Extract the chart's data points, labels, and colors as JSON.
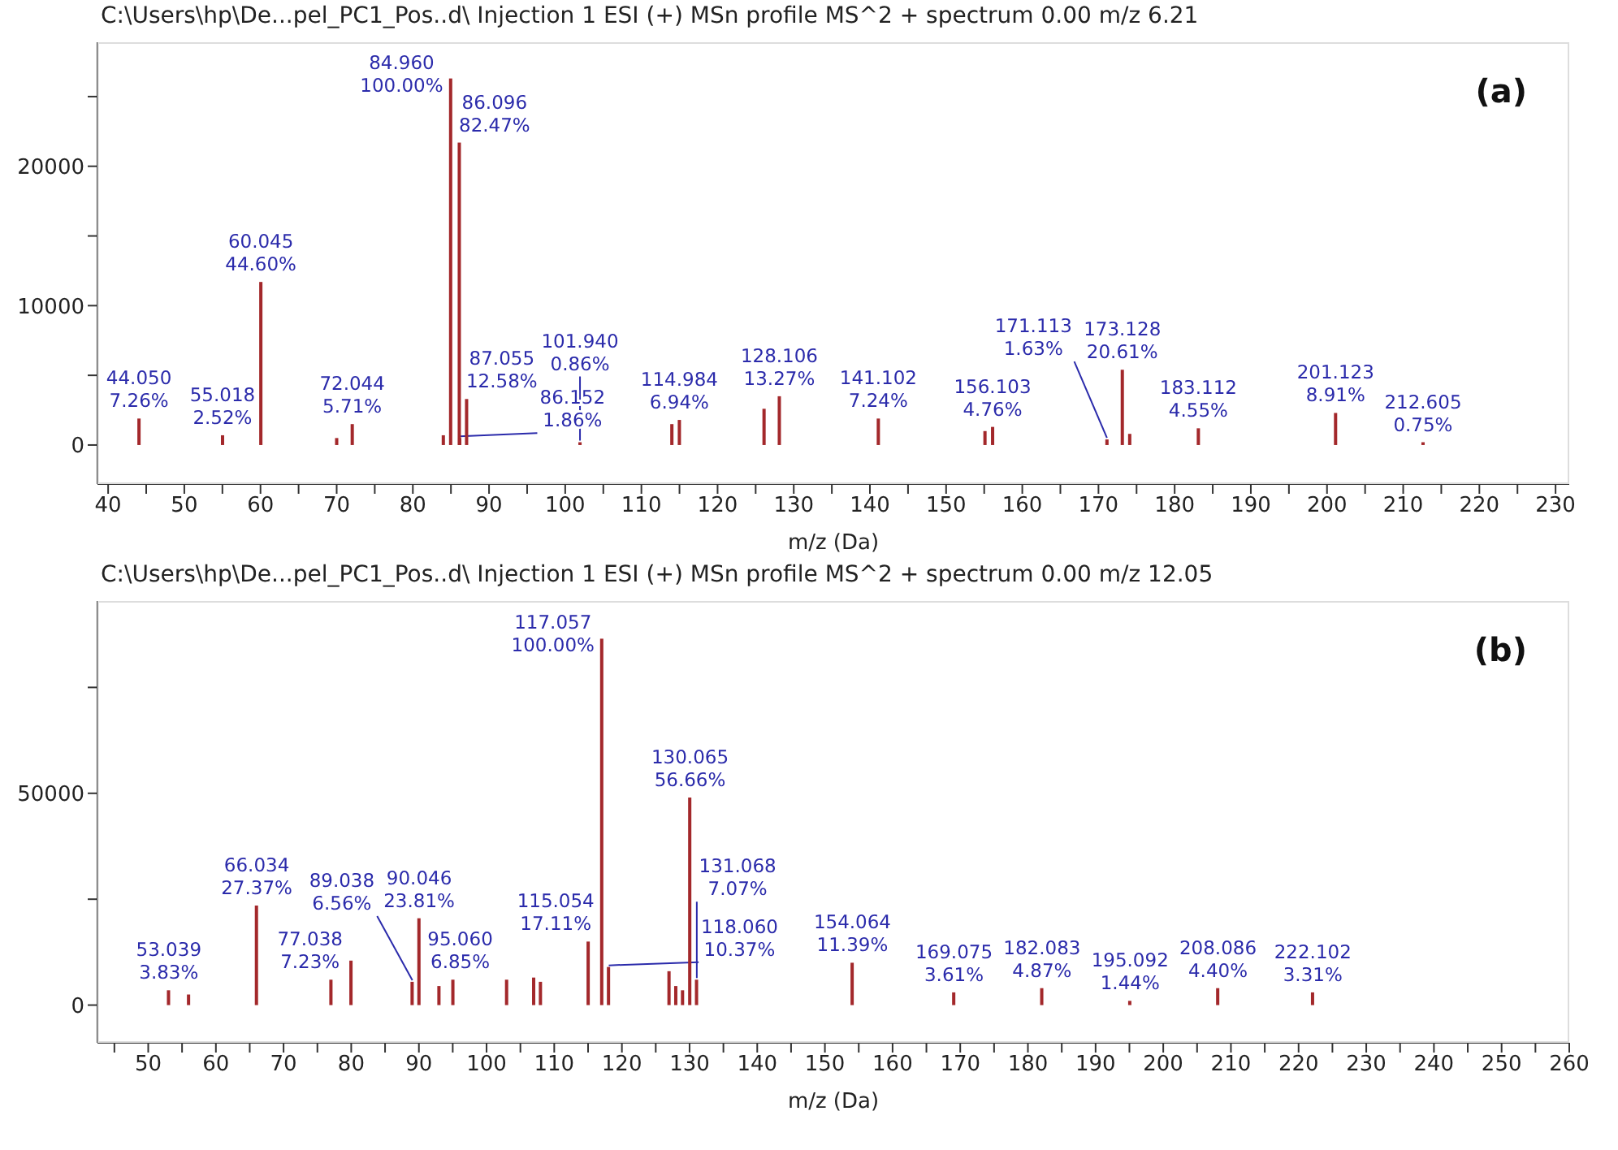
{
  "chart_data": [
    {
      "type": "bar",
      "title": "C:\\Users\\hp\\De...pel_PC1_Pos..d\\ Injection 1 ESI (+) MSn profile MS^2 + spectrum 0.00 m/z 6.21",
      "xlabel": "m/z (Da)",
      "color": "#a3282b",
      "annotations": [
        "(a)",
        {
          "text": "44.050\n7.26%",
          "x": 44.05,
          "y": 1900
        },
        {
          "text": "55.018\n2.52%",
          "x": 55.018,
          "y": 700
        },
        {
          "text": "60.045\n44.60%",
          "x": 60.045,
          "y": 11700
        },
        {
          "text": "72.044\n5.71%",
          "x": 72.044,
          "y": 1500
        },
        {
          "text": "84.960\n100.00%",
          "x": 84.96,
          "y": 26300
        },
        {
          "text": "86.096\n82.47%",
          "x": 86.096,
          "y": 21700
        },
        {
          "text": "86.152\n1.86%",
          "x": 86.152,
          "y": 500
        },
        {
          "text": "87.055\n12.58%",
          "x": 87.055,
          "y": 3300
        },
        {
          "text": "101.940\n0.86%",
          "x": 101.94,
          "y": 200
        },
        {
          "text": "114.984\n6.94%",
          "x": 114.984,
          "y": 1800
        },
        {
          "text": "128.106\n13.27%",
          "x": 128.106,
          "y": 3500
        },
        {
          "text": "141.102\n7.24%",
          "x": 141.102,
          "y": 1900
        },
        {
          "text": "156.103\n4.76%",
          "x": 156.103,
          "y": 1300
        },
        {
          "text": "171.113\n1.63%",
          "x": 171.113,
          "y": 400
        },
        {
          "text": "173.128\n20.61%",
          "x": 173.128,
          "y": 5400
        },
        {
          "text": "183.112\n4.55%",
          "x": 183.112,
          "y": 1200
        },
        {
          "text": "201.123\n8.91%",
          "x": 201.123,
          "y": 2300
        },
        {
          "text": "212.605\n0.75%",
          "x": 212.605,
          "y": 200
        }
      ],
      "x": [
        44.05,
        55.018,
        60.045,
        70.0,
        72.044,
        84.0,
        84.96,
        86.096,
        86.152,
        87.055,
        101.94,
        114.0,
        114.984,
        126.1,
        128.106,
        141.102,
        155.1,
        156.103,
        171.113,
        173.128,
        174.1,
        183.112,
        201.123,
        212.605
      ],
      "values": [
        1900,
        700,
        11700,
        500,
        1500,
        700,
        26300,
        21700,
        500,
        3300,
        200,
        1500,
        1800,
        2600,
        3500,
        1900,
        1000,
        1300,
        400,
        5400,
        800,
        1200,
        2300,
        200
      ],
      "xlim": [
        38.6,
        231.8
      ],
      "xticks": [
        40,
        {
          "value": 45,
          "label": null
        },
        50,
        {
          "value": 55,
          "label": null
        },
        60,
        {
          "value": 65,
          "label": null
        },
        70,
        {
          "value": 75,
          "label": null
        },
        80,
        {
          "value": 85,
          "label": null
        },
        90,
        {
          "value": 95,
          "label": null
        },
        100,
        {
          "value": 105,
          "label": null
        },
        110,
        {
          "value": 115,
          "label": null
        },
        120,
        {
          "value": 125,
          "label": null
        },
        130,
        {
          "value": 135,
          "label": null
        },
        140,
        {
          "value": 145,
          "label": null
        },
        150,
        {
          "value": 155,
          "label": null
        },
        160,
        {
          "value": 165,
          "label": null
        },
        170,
        {
          "value": 175,
          "label": null
        },
        180,
        {
          "value": 185,
          "label": null
        },
        190,
        {
          "value": 195,
          "label": null
        },
        200,
        {
          "value": 205,
          "label": null
        },
        210,
        {
          "value": 215,
          "label": null
        },
        220,
        {
          "value": 225,
          "label": null
        },
        230
      ],
      "ylim": [
        -2800,
        28900
      ],
      "yticks": [
        0,
        {
          "value": 5000,
          "label": null
        },
        10000,
        {
          "value": 15000,
          "label": null
        },
        20000,
        {
          "value": 25000,
          "label": null
        }
      ]
    },
    {
      "type": "bar",
      "title": "C:\\Users\\hp\\De...pel_PC1_Pos..d\\ Injection 1 ESI (+) MSn profile MS^2 + spectrum 0.00 m/z 12.05",
      "xlabel": "m/z (Da)",
      "color": "#a3282b",
      "annotations": [
        "(b)",
        {
          "text": "53.039\n3.83%",
          "x": 53.039,
          "y": 3500
        },
        {
          "text": "66.034\n27.37%",
          "x": 66.034,
          "y": 23500
        },
        {
          "text": "77.038\n7.23%",
          "x": 77.038,
          "y": 6000
        },
        {
          "text": "89.038\n6.56%",
          "x": 89.038,
          "y": 5500
        },
        {
          "text": "90.046\n23.81%",
          "x": 90.046,
          "y": 20500
        },
        {
          "text": "95.060\n6.85%",
          "x": 95.06,
          "y": 6000
        },
        {
          "text": "115.054\n17.11%",
          "x": 115.054,
          "y": 15000
        },
        {
          "text": "117.057\n100.00%",
          "x": 117.057,
          "y": 86500
        },
        {
          "text": "118.060\n10.37%",
          "x": 118.06,
          "y": 9000
        },
        {
          "text": "130.065\n56.66%",
          "x": 130.065,
          "y": 49000
        },
        {
          "text": "131.068\n7.07%",
          "x": 131.068,
          "y": 6000
        },
        {
          "text": "154.064\n11.39%",
          "x": 154.064,
          "y": 10000
        },
        {
          "text": "169.075\n3.61%",
          "x": 169.075,
          "y": 3000
        },
        {
          "text": "182.083\n4.87%",
          "x": 182.083,
          "y": 4000
        },
        {
          "text": "195.092\n1.44%",
          "x": 195.092,
          "y": 1000
        },
        {
          "text": "208.086\n4.40%",
          "x": 208.086,
          "y": 4000
        },
        {
          "text": "222.102\n3.31%",
          "x": 222.102,
          "y": 3000
        }
      ],
      "x": [
        53.039,
        56.0,
        66.034,
        77.038,
        80.0,
        89.038,
        90.046,
        93.0,
        95.06,
        103.0,
        107.0,
        108.0,
        115.054,
        117.057,
        118.06,
        127.0,
        128.0,
        129.0,
        130.065,
        131.068,
        154.064,
        169.075,
        182.083,
        195.092,
        208.086,
        222.102
      ],
      "values": [
        3500,
        2500,
        23500,
        6000,
        10500,
        5500,
        20500,
        4500,
        6000,
        6000,
        6500,
        5500,
        15000,
        86500,
        9000,
        8000,
        4500,
        3500,
        49000,
        6000,
        10000,
        3000,
        4000,
        1000,
        4000,
        3000
      ],
      "xlim": [
        42.5,
        260
      ],
      "xticks": [
        {
          "value": 45,
          "label": null
        },
        50,
        {
          "value": 55,
          "label": null
        },
        60,
        {
          "value": 65,
          "label": null
        },
        70,
        {
          "value": 75,
          "label": null
        },
        80,
        {
          "value": 85,
          "label": null
        },
        90,
        {
          "value": 95,
          "label": null
        },
        100,
        {
          "value": 105,
          "label": null
        },
        110,
        {
          "value": 115,
          "label": null
        },
        120,
        {
          "value": 125,
          "label": null
        },
        130,
        {
          "value": 135,
          "label": null
        },
        140,
        {
          "value": 145,
          "label": null
        },
        150,
        {
          "value": 155,
          "label": null
        },
        160,
        {
          "value": 165,
          "label": null
        },
        170,
        {
          "value": 175,
          "label": null
        },
        180,
        {
          "value": 185,
          "label": null
        },
        190,
        {
          "value": 195,
          "label": null
        },
        200,
        {
          "value": 205,
          "label": null
        },
        210,
        {
          "value": 215,
          "label": null
        },
        220,
        {
          "value": 225,
          "label": null
        },
        230,
        {
          "value": 235,
          "label": null
        },
        240,
        {
          "value": 245,
          "label": null
        },
        250,
        {
          "value": 255,
          "label": null
        },
        260
      ],
      "ylim": [
        -8900,
        95400
      ],
      "yticks": [
        0,
        {
          "value": 25000,
          "label": null
        },
        50000,
        {
          "value": 75000,
          "label": null
        }
      ]
    }
  ]
}
